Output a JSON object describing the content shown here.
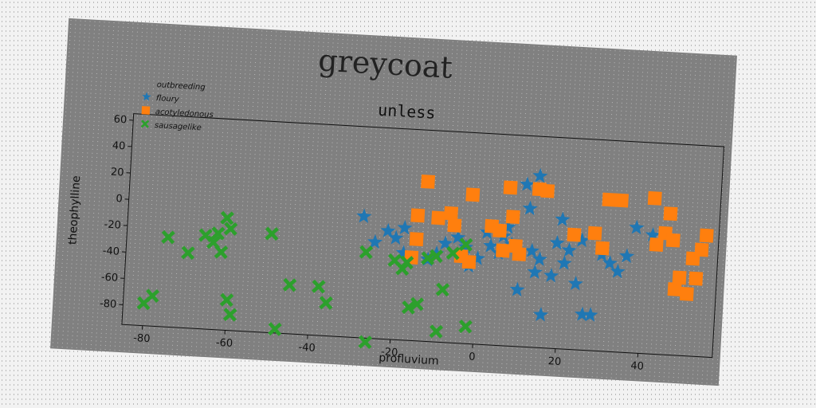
{
  "chart_data": {
    "type": "scatter",
    "title": "greycoat",
    "subtitle": "unless",
    "xlabel": "profluvium",
    "ylabel": "theophylline",
    "xlim": [
      -85,
      58
    ],
    "ylim": [
      -95,
      65
    ],
    "xticks": [
      -80,
      -60,
      -40,
      -20,
      0,
      20,
      40
    ],
    "yticks": [
      -80,
      -60,
      -40,
      -20,
      0,
      20,
      40,
      60
    ],
    "legend_position": "top-left",
    "legend_title": "outbreeding",
    "grid": false,
    "series": [
      {
        "name": "floury",
        "marker": "star",
        "color": "#1f77b4",
        "points": [
          [
            -28,
            -3
          ],
          [
            -25,
            -22
          ],
          [
            -22,
            -13
          ],
          [
            -20,
            -18
          ],
          [
            -18,
            -10
          ],
          [
            -18,
            -29
          ],
          [
            -12,
            -33
          ],
          [
            -10,
            -28
          ],
          [
            -8,
            -20
          ],
          [
            -5,
            -15
          ],
          [
            -3,
            -22
          ],
          [
            -2,
            -36
          ],
          [
            0,
            -30
          ],
          [
            2,
            -10
          ],
          [
            3,
            -20
          ],
          [
            5,
            -25
          ],
          [
            6,
            -12
          ],
          [
            7,
            -5
          ],
          [
            8,
            -18
          ],
          [
            10,
            -52
          ],
          [
            11,
            28
          ],
          [
            12,
            10
          ],
          [
            13,
            -22
          ],
          [
            14,
            35
          ],
          [
            14,
            -38
          ],
          [
            15,
            -28
          ],
          [
            16,
            -70
          ],
          [
            18,
            -40
          ],
          [
            19,
            -15
          ],
          [
            20,
            3
          ],
          [
            21,
            -30
          ],
          [
            22,
            -20
          ],
          [
            24,
            -45
          ],
          [
            25,
            -12
          ],
          [
            26,
            -68
          ],
          [
            28,
            -68
          ],
          [
            30,
            -22
          ],
          [
            32,
            -28
          ],
          [
            34,
            -34
          ],
          [
            36,
            -22
          ],
          [
            38,
            0
          ],
          [
            42,
            -5
          ]
        ]
      },
      {
        "name": "acotyledonous",
        "marker": "square",
        "color": "#ff7f0e",
        "points": [
          [
            -13,
            26
          ],
          [
            -15,
            0
          ],
          [
            -15,
            -18
          ],
          [
            -16,
            -32
          ],
          [
            -10,
            -1
          ],
          [
            -7,
            3
          ],
          [
            -6,
            -6
          ],
          [
            -4,
            -29
          ],
          [
            -2,
            18
          ],
          [
            -2,
            -33
          ],
          [
            3,
            -5
          ],
          [
            5,
            -8
          ],
          [
            6,
            -23
          ],
          [
            7,
            25
          ],
          [
            8,
            3
          ],
          [
            9,
            -19
          ],
          [
            10,
            -25
          ],
          [
            14,
            25
          ],
          [
            16,
            24
          ],
          [
            23,
            -8
          ],
          [
            28,
            -6
          ],
          [
            30,
            -17
          ],
          [
            31,
            20
          ],
          [
            34,
            20
          ],
          [
            42,
            23
          ],
          [
            43,
            -12
          ],
          [
            45,
            -3
          ],
          [
            46,
            12
          ],
          [
            47,
            -8
          ],
          [
            48,
            -45
          ],
          [
            49,
            -36
          ],
          [
            51,
            -48
          ],
          [
            52,
            -21
          ],
          [
            53,
            -36
          ],
          [
            54,
            -14
          ],
          [
            55,
            -3
          ]
        ]
      },
      {
        "name": "sausagelike",
        "marker": "x",
        "color": "#2ca02c",
        "points": [
          [
            -80,
            -78
          ],
          [
            -78,
            -72
          ],
          [
            -75,
            -27
          ],
          [
            -70,
            -38
          ],
          [
            -66,
            -24
          ],
          [
            -64,
            -29
          ],
          [
            -63,
            -22
          ],
          [
            -62,
            -36
          ],
          [
            -61,
            -10
          ],
          [
            -60,
            -18
          ],
          [
            -60,
            -72
          ],
          [
            -59,
            -83
          ],
          [
            -50,
            -20
          ],
          [
            -48,
            -92
          ],
          [
            -45,
            -58
          ],
          [
            -38,
            -58
          ],
          [
            -36,
            -70
          ],
          [
            -27,
            -30
          ],
          [
            -26,
            -98
          ],
          [
            -20,
            -35
          ],
          [
            -18,
            -41
          ],
          [
            -17,
            -36
          ],
          [
            -16,
            -70
          ],
          [
            -14,
            -67
          ],
          [
            -12,
            -32
          ],
          [
            -10,
            -30
          ],
          [
            -9,
            -87
          ],
          [
            -8,
            -55
          ],
          [
            -6,
            -27
          ],
          [
            -3,
            -20
          ],
          [
            -2,
            -82
          ]
        ]
      }
    ]
  }
}
